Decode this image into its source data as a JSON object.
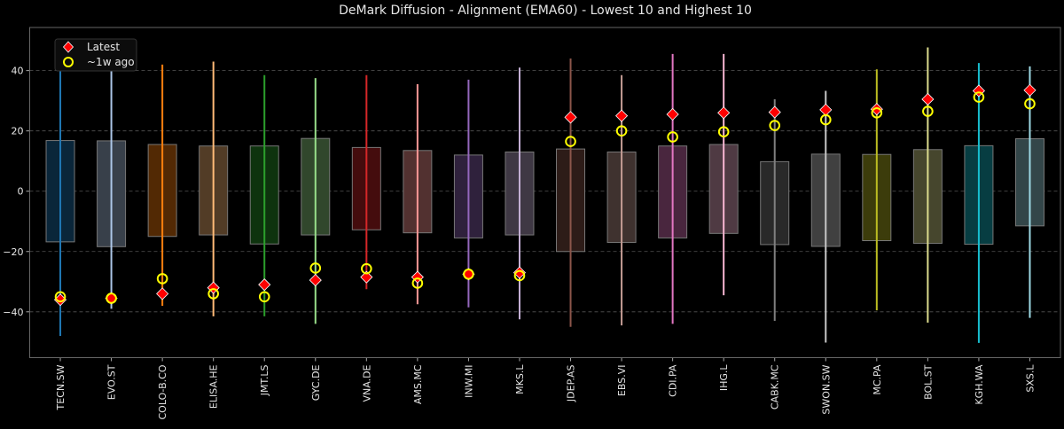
{
  "chart_data": {
    "type": "box",
    "title": "DeMark Diffusion - Alignment (EMA60) - Lowest 10 and Highest 10",
    "xlabel": "",
    "ylabel": "",
    "ylim": [
      -55.2,
      54.3
    ],
    "yticks": [
      -40,
      -20,
      0,
      20,
      40
    ],
    "grid": true,
    "legend_position": "top-left",
    "legend": [
      {
        "label": "Latest",
        "marker": "diamond",
        "color": "#ff0000"
      },
      {
        "label": "~1w ago",
        "marker": "circle-open",
        "color": "#ffff00"
      }
    ],
    "categories": [
      "TECN.SW",
      "EVO.ST",
      "COLO-B.CO",
      "ELISA.HE",
      "JMT.LS",
      "GYC.DE",
      "VNA.DE",
      "AMS.MC",
      "INW.MI",
      "MKS.L",
      "JDEP.AS",
      "EBS.VI",
      "CDI.PA",
      "IHG.L",
      "CABK.MC",
      "SWON.SW",
      "MC.PA",
      "BOL.ST",
      "KGH.WA",
      "SXS.L"
    ],
    "colors": [
      "#1f77b4",
      "#aec7e8",
      "#ff7f0e",
      "#ffbb78",
      "#2ca02c",
      "#98df8a",
      "#d62728",
      "#ff9896",
      "#9467bd",
      "#c5b0d5",
      "#8c564b",
      "#c49c94",
      "#e377c2",
      "#f7b6d2",
      "#7f7f7f",
      "#c7c7c7",
      "#bcbd22",
      "#dbdb8d",
      "#17becf",
      "#9edae5"
    ],
    "box_high": [
      16.8,
      16.7,
      15.5,
      15,
      15,
      17.5,
      14.5,
      13.5,
      12,
      13,
      14,
      13,
      15,
      15.5,
      9.8,
      12.3,
      12.2,
      13.8,
      15.1,
      17.4
    ],
    "box_low": [
      -16.8,
      -18.4,
      -15,
      -14.5,
      -17.5,
      -14.5,
      -12.8,
      -13.8,
      -15.5,
      -14.5,
      -20,
      -17,
      -15.5,
      -14,
      -17.7,
      -18.3,
      -16.4,
      -17.3,
      -17.6,
      -11.5
    ],
    "whisker_high": [
      41,
      50,
      42,
      43,
      38.5,
      37.5,
      38.5,
      35.5,
      37,
      41,
      44,
      38.5,
      45.5,
      45.5,
      30.5,
      33.3,
      40.4,
      47.7,
      42.5,
      41.4
    ],
    "whisker_low": [
      -48,
      -39,
      -38,
      -41.5,
      -41.5,
      -44,
      -32.5,
      -37.5,
      -38.5,
      -42.5,
      -45,
      -44.5,
      -44,
      -34.5,
      -43,
      -50.2,
      -39.5,
      -43.6,
      -50.3,
      -42
    ],
    "latest": [
      -36,
      -35.5,
      -34,
      -32,
      -31,
      -29.5,
      -28.5,
      -28.5,
      -27.5,
      -27,
      24.5,
      25,
      25.5,
      26,
      26.2,
      27,
      27.2,
      30.5,
      33.3,
      33.5
    ],
    "week_ago": [
      -35,
      -35.5,
      -29,
      -34,
      -35,
      -25.5,
      -25.7,
      -30.5,
      -27.5,
      -28,
      16.5,
      20,
      18,
      19.7,
      21.8,
      23.7,
      26,
      26.5,
      31.2,
      29
    ]
  }
}
